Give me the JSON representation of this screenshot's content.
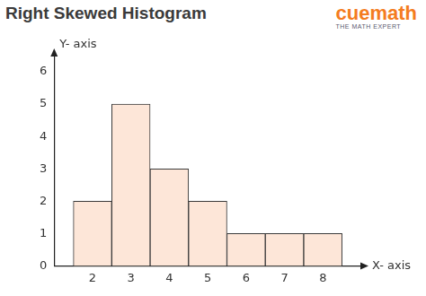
{
  "chart_data": {
    "type": "histogram",
    "title": "Right Skewed Histogram",
    "annotations": [
      "cuemath",
      "THE MATH EXPERT"
    ],
    "x_label": "X- axis",
    "y_label": "Y- axis",
    "bins": [
      1.5,
      2.5,
      3.5,
      4.5,
      5.5,
      6.5,
      7.5,
      8.5
    ],
    "values": [
      2,
      5,
      3,
      2,
      1,
      1,
      1
    ],
    "color": "#fde6d8",
    "xlim": [
      1,
      9
    ],
    "xticks": [
      2,
      3,
      4,
      5,
      6,
      7,
      8
    ],
    "ylim": [
      0,
      6.5
    ],
    "yticks": [
      0,
      1,
      2,
      3,
      4,
      5,
      6
    ],
    "grid": false
  }
}
